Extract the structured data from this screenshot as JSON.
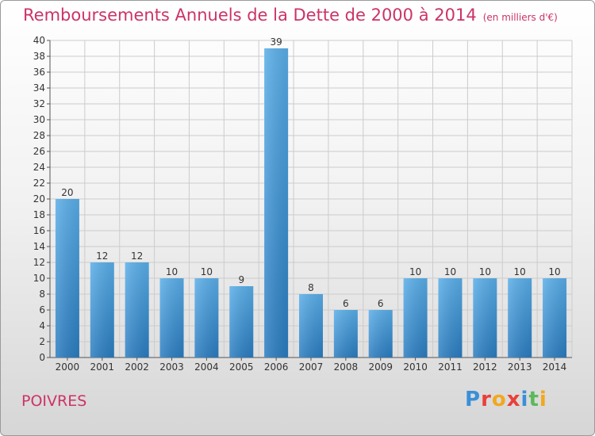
{
  "header": {
    "title": "Remboursements Annuels de la Dette de 2000 à 2014",
    "unit": "(en milliers d'€)"
  },
  "commune": "POIVRES",
  "logo": {
    "text": "Proxiti",
    "letters": [
      {
        "ch": "P",
        "color": "#3a8fd8"
      },
      {
        "ch": "r",
        "color": "#e8403a"
      },
      {
        "ch": "o",
        "color": "#f2a81d"
      },
      {
        "ch": "x",
        "color": "#e8403a"
      },
      {
        "ch": "i",
        "color": "#3a8fd8"
      },
      {
        "ch": "t",
        "color": "#5cb85c"
      },
      {
        "ch": "i",
        "color": "#f2a81d"
      }
    ]
  },
  "colors": {
    "title": "#cc3366",
    "bar_light": "#5aaee8",
    "bar_dark": "#2a7cc0",
    "grid": "#cccccc"
  },
  "chart_data": {
    "type": "bar",
    "title": "Remboursements Annuels de la Dette de 2000 à 2014",
    "ylabel": "(en milliers d'€)",
    "categories": [
      "2000",
      "2001",
      "2002",
      "2003",
      "2004",
      "2005",
      "2006",
      "2007",
      "2008",
      "2009",
      "2010",
      "2011",
      "2012",
      "2013",
      "2014"
    ],
    "values": [
      20,
      12,
      12,
      10,
      10,
      9,
      39,
      8,
      6,
      6,
      10,
      10,
      10,
      10,
      10
    ],
    "ylim": [
      0,
      40
    ],
    "yticks": [
      0,
      2,
      4,
      6,
      8,
      10,
      12,
      14,
      16,
      18,
      20,
      22,
      24,
      26,
      28,
      30,
      32,
      34,
      36,
      38,
      40
    ],
    "grid": true
  }
}
